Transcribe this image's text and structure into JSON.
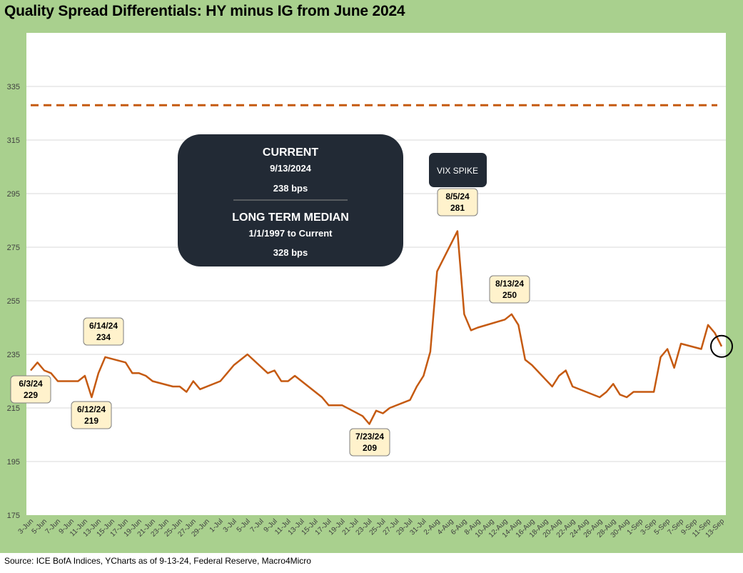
{
  "title": "Quality Spread Differentials: HY minus IG from June 2024",
  "source": "Source: ICE BofA Indices, YCharts as of 9-13-24, Federal Reserve, Macro4Micro",
  "colors": {
    "frame": "#a9d08e",
    "line": "#c55a11",
    "box": "#222a35",
    "callout": "#fff2cc"
  },
  "info_box": {
    "current_label": "CURRENT",
    "current_date": "9/13/2024",
    "current_value": "238 bps",
    "median_label": "LONG TERM MEDIAN",
    "median_range": "1/1/1997 to Current",
    "median_value": "328 bps"
  },
  "vix_label": "VIX SPIKE",
  "chart_data": {
    "type": "line",
    "title": "Quality Spread Differentials: HY minus IG from June 2024",
    "ylim": [
      175,
      355
    ],
    "yticks": [
      175,
      195,
      215,
      235,
      255,
      275,
      295,
      315,
      335
    ],
    "grid": true,
    "x_tick_labels": [
      "3-Jun",
      "5-Jun",
      "7-Jun",
      "9-Jun",
      "11-Jun",
      "13-Jun",
      "15-Jun",
      "17-Jun",
      "19-Jun",
      "21-Jun",
      "23-Jun",
      "25-Jun",
      "27-Jun",
      "29-Jun",
      "1-Jul",
      "3-Jul",
      "5-Jul",
      "7-Jul",
      "9-Jul",
      "11-Jul",
      "13-Jul",
      "15-Jul",
      "17-Jul",
      "19-Jul",
      "21-Jul",
      "23-Jul",
      "25-Jul",
      "27-Jul",
      "29-Jul",
      "31-Jul",
      "2-Aug",
      "4-Aug",
      "6-Aug",
      "8-Aug",
      "10-Aug",
      "12-Aug",
      "14-Aug",
      "16-Aug",
      "18-Aug",
      "20-Aug",
      "22-Aug",
      "24-Aug",
      "26-Aug",
      "28-Aug",
      "30-Aug",
      "1-Sep",
      "3-Sep",
      "5-Sep",
      "7-Sep",
      "9-Sep",
      "11-Sep",
      "13-Sep"
    ],
    "series": [
      {
        "values": [
          [
            "3-Jun",
            229
          ],
          [
            "4-Jun",
            232
          ],
          [
            "5-Jun",
            229
          ],
          [
            "6-Jun",
            228
          ],
          [
            "7-Jun",
            225
          ],
          [
            "10-Jun",
            225
          ],
          [
            "11-Jun",
            227
          ],
          [
            "12-Jun",
            219
          ],
          [
            "13-Jun",
            228
          ],
          [
            "14-Jun",
            234
          ],
          [
            "17-Jun",
            232
          ],
          [
            "18-Jun",
            228
          ],
          [
            "19-Jun",
            228
          ],
          [
            "20-Jun",
            227
          ],
          [
            "21-Jun",
            225
          ],
          [
            "24-Jun",
            223
          ],
          [
            "25-Jun",
            223
          ],
          [
            "26-Jun",
            221
          ],
          [
            "27-Jun",
            225
          ],
          [
            "28-Jun",
            222
          ],
          [
            "1-Jul",
            225
          ],
          [
            "2-Jul",
            228
          ],
          [
            "3-Jul",
            231
          ],
          [
            "5-Jul",
            235
          ],
          [
            "8-Jul",
            228
          ],
          [
            "9-Jul",
            229
          ],
          [
            "10-Jul",
            225
          ],
          [
            "11-Jul",
            225
          ],
          [
            "12-Jul",
            227
          ],
          [
            "15-Jul",
            221
          ],
          [
            "16-Jul",
            219
          ],
          [
            "17-Jul",
            216
          ],
          [
            "19-Jul",
            216
          ],
          [
            "22-Jul",
            212
          ],
          [
            "23-Jul",
            209
          ],
          [
            "24-Jul",
            214
          ],
          [
            "25-Jul",
            213
          ],
          [
            "26-Jul",
            215
          ],
          [
            "29-Jul",
            218
          ],
          [
            "30-Jul",
            223
          ],
          [
            "31-Jul",
            227
          ],
          [
            "1-Aug",
            236
          ],
          [
            "2-Aug",
            266
          ],
          [
            "5-Aug",
            281
          ],
          [
            "6-Aug",
            250
          ],
          [
            "7-Aug",
            244
          ],
          [
            "8-Aug",
            245
          ],
          [
            "12-Aug",
            248
          ],
          [
            "13-Aug",
            250
          ],
          [
            "14-Aug",
            246
          ],
          [
            "15-Aug",
            233
          ],
          [
            "16-Aug",
            231
          ],
          [
            "19-Aug",
            223
          ],
          [
            "20-Aug",
            227
          ],
          [
            "21-Aug",
            229
          ],
          [
            "22-Aug",
            223
          ],
          [
            "26-Aug",
            219
          ],
          [
            "27-Aug",
            221
          ],
          [
            "28-Aug",
            224
          ],
          [
            "29-Aug",
            220
          ],
          [
            "30-Aug",
            219
          ],
          [
            "31-Aug",
            221
          ],
          [
            "3-Sep",
            221
          ],
          [
            "4-Sep",
            234
          ],
          [
            "5-Sep",
            237
          ],
          [
            "6-Sep",
            230
          ],
          [
            "7-Sep",
            239
          ],
          [
            "10-Sep",
            237
          ],
          [
            "11-Sep",
            246
          ],
          [
            "12-Sep",
            243
          ],
          [
            "13-Sep",
            238
          ]
        ]
      }
    ],
    "median_line": 328,
    "annotations": [
      {
        "date": "6/3/24",
        "value": 229,
        "x": "3-Jun"
      },
      {
        "date": "6/12/24",
        "value": 219,
        "x": "12-Jun"
      },
      {
        "date": "6/14/24",
        "value": 234,
        "x": "14-Jun"
      },
      {
        "date": "7/23/24",
        "value": 209,
        "x": "23-Jul"
      },
      {
        "date": "8/5/24",
        "value": 281,
        "x": "5-Aug"
      },
      {
        "date": "8/13/24",
        "value": 250,
        "x": "13-Aug"
      }
    ]
  }
}
